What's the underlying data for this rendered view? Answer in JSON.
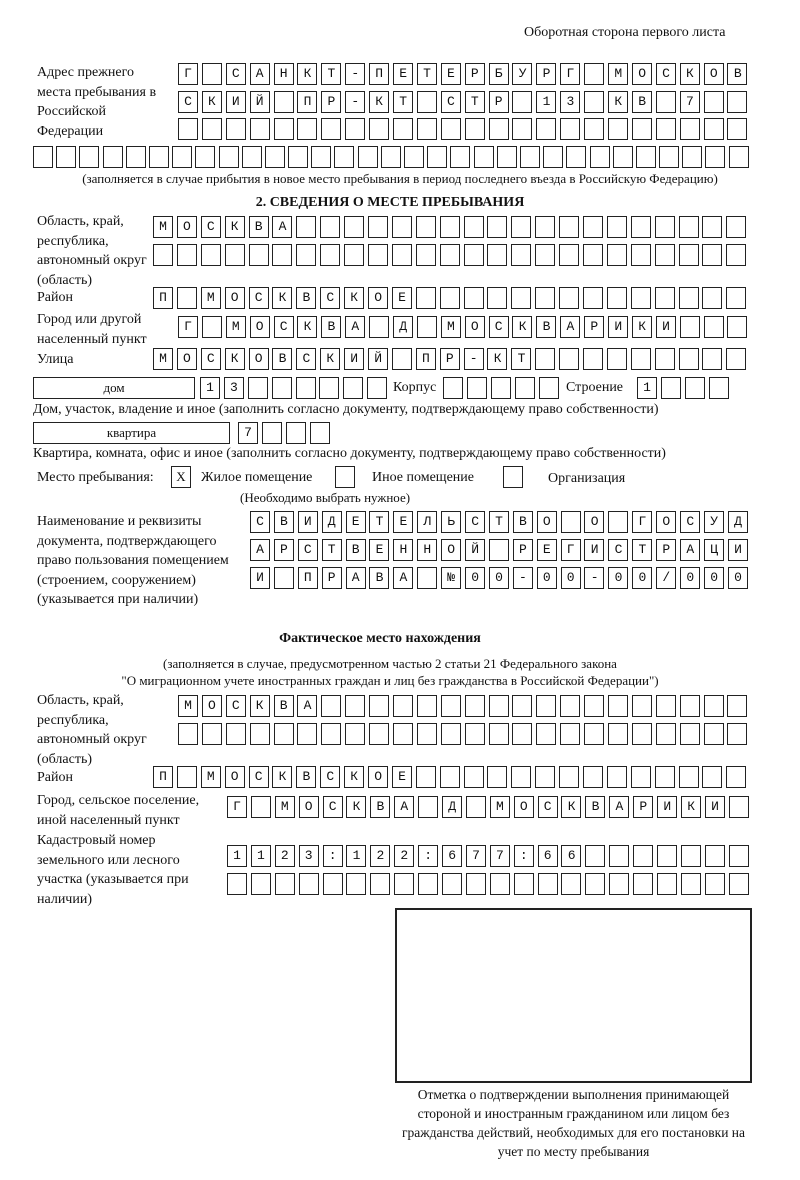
{
  "header": {
    "page_side": "Оборотная сторона первого листа"
  },
  "prev_address": {
    "label": "Адрес прежнего места пребывания в Российской Федерации",
    "rows": [
      {
        "cells": 24,
        "value": "Г САНКТ-ПЕТЕРБУРГ МОСКОВ"
      },
      {
        "cells": 24,
        "value": "СКИЙ ПР-КТ СТР 13 КВ 7"
      },
      {
        "cells": 24,
        "value": ""
      },
      {
        "cells": 31,
        "value": ""
      }
    ],
    "note": "(заполняется в случае прибытия в новое место пребывания в период последнего въезда в Российскую Федерацию)"
  },
  "section2": {
    "title": "2. СВЕДЕНИЯ О МЕСТЕ ПРЕБЫВАНИЯ",
    "region_label": "Область, край, республика, автономный округ (область)",
    "region_rows": [
      {
        "cells": 25,
        "value": "МОСКВА"
      },
      {
        "cells": 25,
        "value": ""
      }
    ],
    "district_label": "Район",
    "district": {
      "cells": 25,
      "value": "П МОСКВСКОЕ"
    },
    "city_label": "Город или другой населенный пункт",
    "city": {
      "cells": 24,
      "value": "Г МОСКВА Д МОСКВАРИКИ"
    },
    "street_label": "Улица",
    "street": {
      "cells": 25,
      "value": "МОСКОВСКИЙ ПР-КТ"
    },
    "house_type": "дом",
    "house": {
      "cells": 8,
      "value": "13"
    },
    "korpus_label": "Корпус",
    "korpus": {
      "cells": 5,
      "value": ""
    },
    "building_label": "Строение",
    "building": {
      "cells": 4,
      "value": "1"
    },
    "house_note": "Дом, участок, владение и иное (заполнить согласно документу, подтверждающему право собственности)",
    "flat_type": "квартира",
    "flat": {
      "cells": 4,
      "value": "7"
    },
    "flat_note": "Квартира, комната, офис и иное (заполнить согласно документу, подтверждающему право собственности)",
    "stay_place_label": "Место пребывания:",
    "options": [
      {
        "label": "Жилое помещение",
        "mark": "X"
      },
      {
        "label": "Иное помещение",
        "mark": ""
      },
      {
        "label": "Организация",
        "mark": ""
      }
    ],
    "choose_note": "(Необходимо выбрать нужное)",
    "doc_label": "Наименование и реквизиты документа, подтверждающего право пользования помещением (строением, сооружением) (указывается при наличии)",
    "doc_rows": [
      {
        "cells": 21,
        "value": "СВИДЕТЕЛЬСТВО О ГОСУД"
      },
      {
        "cells": 21,
        "value": "АРСТВЕННОЙ РЕГИСТРАЦИ"
      },
      {
        "cells": 21,
        "value": "И ПРАВА №00-00-00/000"
      }
    ]
  },
  "actual": {
    "title": "Фактическое место нахождения",
    "note1": "(заполняется в случае, предусмотренном частью 2 статьи 21 Федерального закона",
    "note2": "\"О миграционном учете иностранных граждан и лиц без гражданства в Российской Федерации\")",
    "region_label": "Область, край, республика, автономный округ (область)",
    "region_rows": [
      {
        "cells": 24,
        "value": "МОСКВА"
      },
      {
        "cells": 24,
        "value": ""
      }
    ],
    "district_label": "Район",
    "district": {
      "cells": 25,
      "value": "П МОСКВСКОЕ"
    },
    "city_label": "Город, сельское поселение, иной населенный пункт",
    "city": {
      "cells": 22,
      "value": "Г МОСКВА Д МОСКВАРИКИ"
    },
    "cadastral_label": "Кадастровый номер земельного или лесного участка (указывается при наличии)",
    "cadastral_rows": [
      {
        "cells": 22,
        "value": "1123:122:677:66"
      },
      {
        "cells": 22,
        "value": ""
      }
    ]
  },
  "confirmation": {
    "caption": "Отметка о подтверждении выполнения принимающей стороной и иностранным гражданином или лицом без гражданства действий, необходимых для его постановки на учет по месту пребывания"
  }
}
